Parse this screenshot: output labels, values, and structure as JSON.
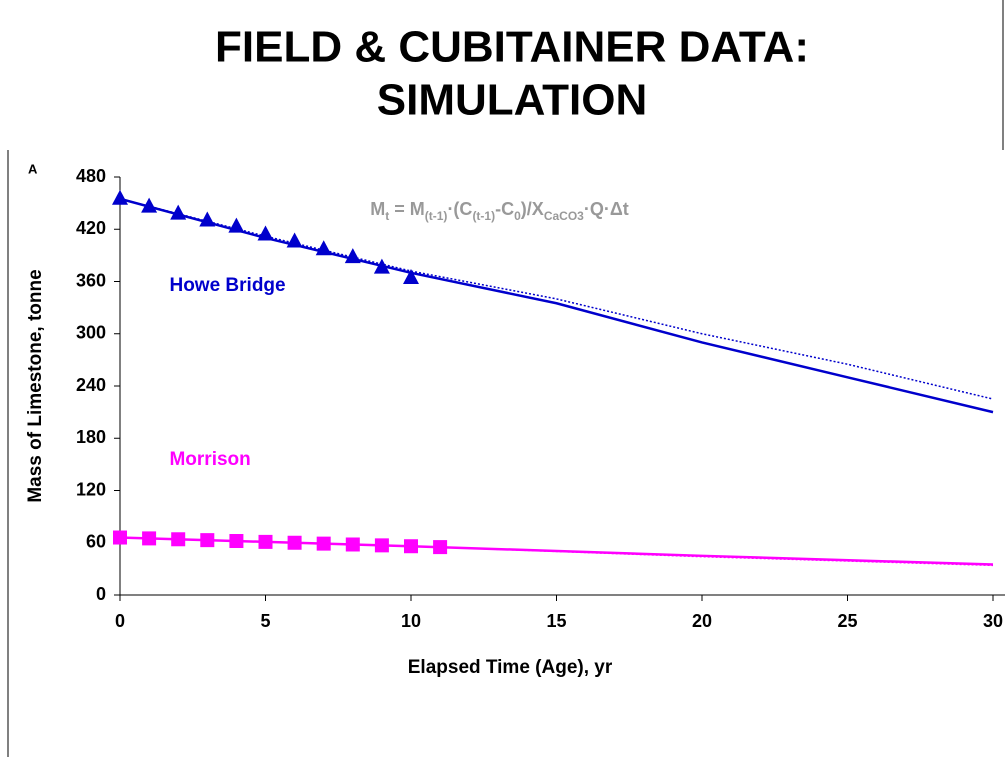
{
  "chart_data": {
    "type": "line",
    "title": [
      "FIELD & CUBITAINER DATA:",
      "SIMULATION"
    ],
    "panel_label": "A",
    "xlabel": "Elapsed Time (Age), yr",
    "ylabel": "Mass of Limestone, tonne",
    "xlim": [
      0,
      30
    ],
    "ylim": [
      0,
      480
    ],
    "xticks": [
      0,
      5,
      10,
      15,
      20,
      25,
      30
    ],
    "yticks": [
      0,
      60,
      120,
      180,
      240,
      300,
      360,
      420,
      480
    ],
    "annotations": [
      {
        "text": "Howe Bridge",
        "x": 1.7,
        "y": 355,
        "color": "#0000cc"
      },
      {
        "text": "Morrison",
        "x": 1.7,
        "y": 155,
        "color": "#ff00ff"
      }
    ],
    "formula": {
      "x": 8.6,
      "y": 442,
      "color": "#999999",
      "parts": [
        {
          "text": "M"
        },
        {
          "text": "t",
          "sub": true
        },
        {
          "text": " = M"
        },
        {
          "text": "(t-1)",
          "sub": true
        },
        {
          "text": "·(C"
        },
        {
          "text": "(t-1)",
          "sub": true
        },
        {
          "text": "-C"
        },
        {
          "text": "0",
          "sub": true
        },
        {
          "text": ")/X"
        },
        {
          "text": "CaCO3",
          "sub": true
        },
        {
          "text": "·Q·Δt"
        }
      ]
    },
    "series": [
      {
        "color": "#0000cc",
        "style": "solid",
        "x": [
          0,
          5,
          10,
          15,
          20,
          25,
          30
        ],
        "values": [
          455,
          410,
          370,
          335,
          290,
          250,
          210
        ]
      },
      {
        "color": "#0000cc",
        "style": "dotted",
        "x": [
          0,
          5,
          10,
          15,
          20,
          25,
          30
        ],
        "values": [
          455,
          412,
          372,
          340,
          300,
          265,
          225
        ]
      },
      {
        "color": "#0000cc",
        "style": "none",
        "marker": "triangle",
        "x": [
          0,
          1,
          2,
          3,
          4,
          5,
          6,
          7,
          8,
          9,
          10
        ],
        "values": [
          455,
          446,
          438,
          430,
          423,
          414,
          406,
          397,
          388,
          376,
          364
        ]
      },
      {
        "color": "#ff00ff",
        "style": "solid",
        "x": [
          0,
          10,
          20,
          30
        ],
        "values": [
          66,
          56,
          45,
          35
        ]
      },
      {
        "color": "#ff00ff",
        "style": "dotted",
        "x": [
          0,
          10,
          20,
          30
        ],
        "values": [
          66,
          56,
          44,
          34
        ]
      },
      {
        "color": "#ff00ff",
        "style": "none",
        "marker": "square",
        "x": [
          0,
          1,
          2,
          3,
          4,
          5,
          6,
          7,
          8,
          9,
          10,
          11
        ],
        "values": [
          66,
          65,
          64,
          63,
          62,
          61,
          60,
          59,
          58,
          57,
          56,
          55
        ]
      }
    ]
  }
}
